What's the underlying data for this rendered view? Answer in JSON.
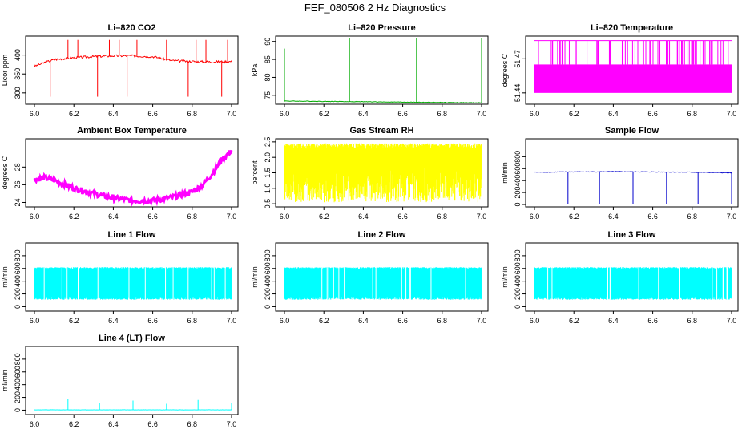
{
  "figure": {
    "title": "FEF_080506  2 Hz Diagnostics"
  },
  "chart_data": [
    {
      "type": "line",
      "title": "Li–820 CO2",
      "ylabel": "Licor ppm",
      "xlim": [
        6.0,
        7.0
      ],
      "ylim": [
        270,
        450
      ],
      "xticks": [
        "6.0",
        "6.2",
        "6.4",
        "6.6",
        "6.8",
        "7.0"
      ],
      "yticks": [
        {
          "value": 300,
          "label": "300"
        },
        {
          "value": 350,
          "label": "350"
        },
        {
          "value": 400,
          "label": "400"
        }
      ],
      "color": "#ff0000",
      "series": [
        {
          "name": "CO2",
          "x": [
            6.0,
            6.05,
            6.1,
            6.2,
            6.3,
            6.4,
            6.5,
            6.6,
            6.7,
            6.8,
            6.9,
            7.0
          ],
          "y": [
            370,
            380,
            388,
            393,
            396,
            398,
            398,
            396,
            385,
            383,
            382,
            383
          ]
        }
      ]
    },
    {
      "type": "line",
      "title": "Li–820 Pressure",
      "ylabel": "kPa",
      "xlim": [
        6.0,
        7.0
      ],
      "ylim": [
        72.5,
        91.5
      ],
      "xticks": [
        "6.0",
        "6.2",
        "6.4",
        "6.6",
        "6.8",
        "7.0"
      ],
      "yticks": [
        {
          "value": 75,
          "label": "75"
        },
        {
          "value": 80,
          "label": "80"
        },
        {
          "value": 85,
          "label": "85"
        },
        {
          "value": 90,
          "label": "90"
        }
      ],
      "color": "#00aa00",
      "series": [
        {
          "name": "Pressure",
          "x": [
            6.0,
            6.2,
            6.4,
            6.6,
            6.8,
            7.0
          ],
          "y": [
            73.4,
            73.3,
            73.2,
            73.1,
            73.0,
            72.9
          ]
        }
      ]
    },
    {
      "type": "line",
      "title": "Li–820 Temperature",
      "ylabel": "degrees C",
      "xlim": [
        6.0,
        7.0
      ],
      "ylim": [
        51.43,
        51.49
      ],
      "xticks": [
        "6.0",
        "6.2",
        "6.4",
        "6.6",
        "6.8",
        "7.0"
      ],
      "yticks": [
        {
          "value": 51.44,
          "label": "51.44"
        },
        {
          "value": 51.47,
          "label": "51.47"
        }
      ],
      "color": "#ff00ff",
      "series": [
        {
          "name": "Temperature",
          "x": [
            6.0,
            7.0
          ],
          "y": [
            51.46,
            51.46
          ]
        }
      ]
    },
    {
      "type": "line",
      "title": "Ambient Box Temperature",
      "ylabel": "degrees C",
      "xlim": [
        6.0,
        7.0
      ],
      "ylim": [
        23.5,
        31.2
      ],
      "xticks": [
        "6.0",
        "6.2",
        "6.4",
        "6.6",
        "6.8",
        "7.0"
      ],
      "yticks": [
        {
          "value": 24,
          "label": "24"
        },
        {
          "value": 26,
          "label": "26"
        },
        {
          "value": 28,
          "label": "28"
        }
      ],
      "color": "#ff00ff",
      "series": [
        {
          "name": "Ambient",
          "x": [
            6.0,
            6.05,
            6.1,
            6.2,
            6.3,
            6.4,
            6.5,
            6.6,
            6.7,
            6.8,
            6.85,
            6.9,
            6.95,
            7.0
          ],
          "y": [
            26.6,
            26.8,
            26.5,
            25.6,
            25.0,
            24.5,
            24.2,
            24.2,
            24.6,
            25.2,
            25.9,
            27.2,
            28.8,
            29.9
          ]
        }
      ]
    },
    {
      "type": "line",
      "title": "Gas Stream RH",
      "ylabel": "percent",
      "xlim": [
        6.0,
        7.0
      ],
      "ylim": [
        0.4,
        2.6
      ],
      "xticks": [
        "6.0",
        "6.2",
        "6.4",
        "6.6",
        "6.8",
        "7.0"
      ],
      "yticks": [
        {
          "value": 0.5,
          "label": "0.5"
        },
        {
          "value": 1.0,
          "label": "1.0"
        },
        {
          "value": 1.5,
          "label": "1.5"
        },
        {
          "value": 2.0,
          "label": "2.0"
        },
        {
          "value": 2.5,
          "label": "2.5"
        }
      ],
      "color": "#ffff00",
      "series": [
        {
          "name": "RH",
          "x": [
            6.0,
            7.0
          ],
          "y": [
            1.6,
            1.6
          ]
        }
      ]
    },
    {
      "type": "line",
      "title": "Sample Flow",
      "ylabel": "ml/min",
      "xlim": [
        6.0,
        7.0
      ],
      "ylim": [
        -40,
        1100
      ],
      "xticks": [
        "6.0",
        "6.2",
        "6.4",
        "6.6",
        "6.8",
        "7.0"
      ],
      "yticks": [
        {
          "value": 0,
          "label": "0"
        },
        {
          "value": 200,
          "label": "200"
        },
        {
          "value": 400,
          "label": "400"
        },
        {
          "value": 600,
          "label": "600"
        },
        {
          "value": 800,
          "label": "800"
        }
      ],
      "color": "#0000cc",
      "series": [
        {
          "name": "Sample Flow",
          "x": [
            6.0,
            6.2,
            6.4,
            6.6,
            6.8,
            7.0
          ],
          "y": [
            540,
            545,
            548,
            545,
            540,
            530
          ]
        }
      ]
    },
    {
      "type": "line",
      "title": "Line 1 Flow",
      "ylabel": "ml/min",
      "xlim": [
        6.0,
        7.0
      ],
      "ylim": [
        -70,
        1000
      ],
      "xticks": [
        "6.0",
        "6.2",
        "6.4",
        "6.6",
        "6.8",
        "7.0"
      ],
      "yticks": [
        {
          "value": 0,
          "label": "0"
        },
        {
          "value": 200,
          "label": "200"
        },
        {
          "value": 400,
          "label": "400"
        },
        {
          "value": 600,
          "label": "600"
        },
        {
          "value": 800,
          "label": "800"
        }
      ],
      "color": "#00ffff",
      "series": [
        {
          "name": "Line 1",
          "x": [
            6.0,
            7.0
          ],
          "y": [
            580,
            580
          ]
        }
      ]
    },
    {
      "type": "line",
      "title": "Line 2 Flow",
      "ylabel": "ml/min",
      "xlim": [
        6.0,
        7.0
      ],
      "ylim": [
        -70,
        1000
      ],
      "xticks": [
        "6.0",
        "6.2",
        "6.4",
        "6.6",
        "6.8",
        "7.0"
      ],
      "yticks": [
        {
          "value": 0,
          "label": "0"
        },
        {
          "value": 200,
          "label": "200"
        },
        {
          "value": 400,
          "label": "400"
        },
        {
          "value": 600,
          "label": "600"
        },
        {
          "value": 800,
          "label": "800"
        }
      ],
      "color": "#00ffff",
      "series": [
        {
          "name": "Line 2",
          "x": [
            6.0,
            7.0
          ],
          "y": [
            570,
            570
          ]
        }
      ]
    },
    {
      "type": "line",
      "title": "Line 3 Flow",
      "ylabel": "ml/min",
      "xlim": [
        6.0,
        7.0
      ],
      "ylim": [
        -70,
        1000
      ],
      "xticks": [
        "6.0",
        "6.2",
        "6.4",
        "6.6",
        "6.8",
        "7.0"
      ],
      "yticks": [
        {
          "value": 0,
          "label": "0"
        },
        {
          "value": 200,
          "label": "200"
        },
        {
          "value": 400,
          "label": "400"
        },
        {
          "value": 600,
          "label": "600"
        },
        {
          "value": 800,
          "label": "800"
        }
      ],
      "color": "#00ffff",
      "series": [
        {
          "name": "Line 3",
          "x": [
            6.0,
            7.0
          ],
          "y": [
            580,
            580
          ]
        }
      ]
    },
    {
      "type": "line",
      "title": "Line 4 (LT) Flow",
      "ylabel": "ml/min",
      "xlim": [
        6.0,
        7.0
      ],
      "ylim": [
        -70,
        1000
      ],
      "xticks": [
        "6.0",
        "6.2",
        "6.4",
        "6.6",
        "6.8",
        "7.0"
      ],
      "yticks": [
        {
          "value": 0,
          "label": "0"
        },
        {
          "value": 200,
          "label": "200"
        },
        {
          "value": 400,
          "label": "400"
        },
        {
          "value": 600,
          "label": "600"
        },
        {
          "value": 800,
          "label": "800"
        }
      ],
      "color": "#00ffff",
      "series": [
        {
          "name": "Line 4",
          "x": [
            6.0,
            6.17,
            6.33,
            6.5,
            6.67,
            6.83,
            7.0
          ],
          "y": [
            5,
            5,
            5,
            5,
            5,
            5,
            5
          ]
        }
      ]
    }
  ]
}
